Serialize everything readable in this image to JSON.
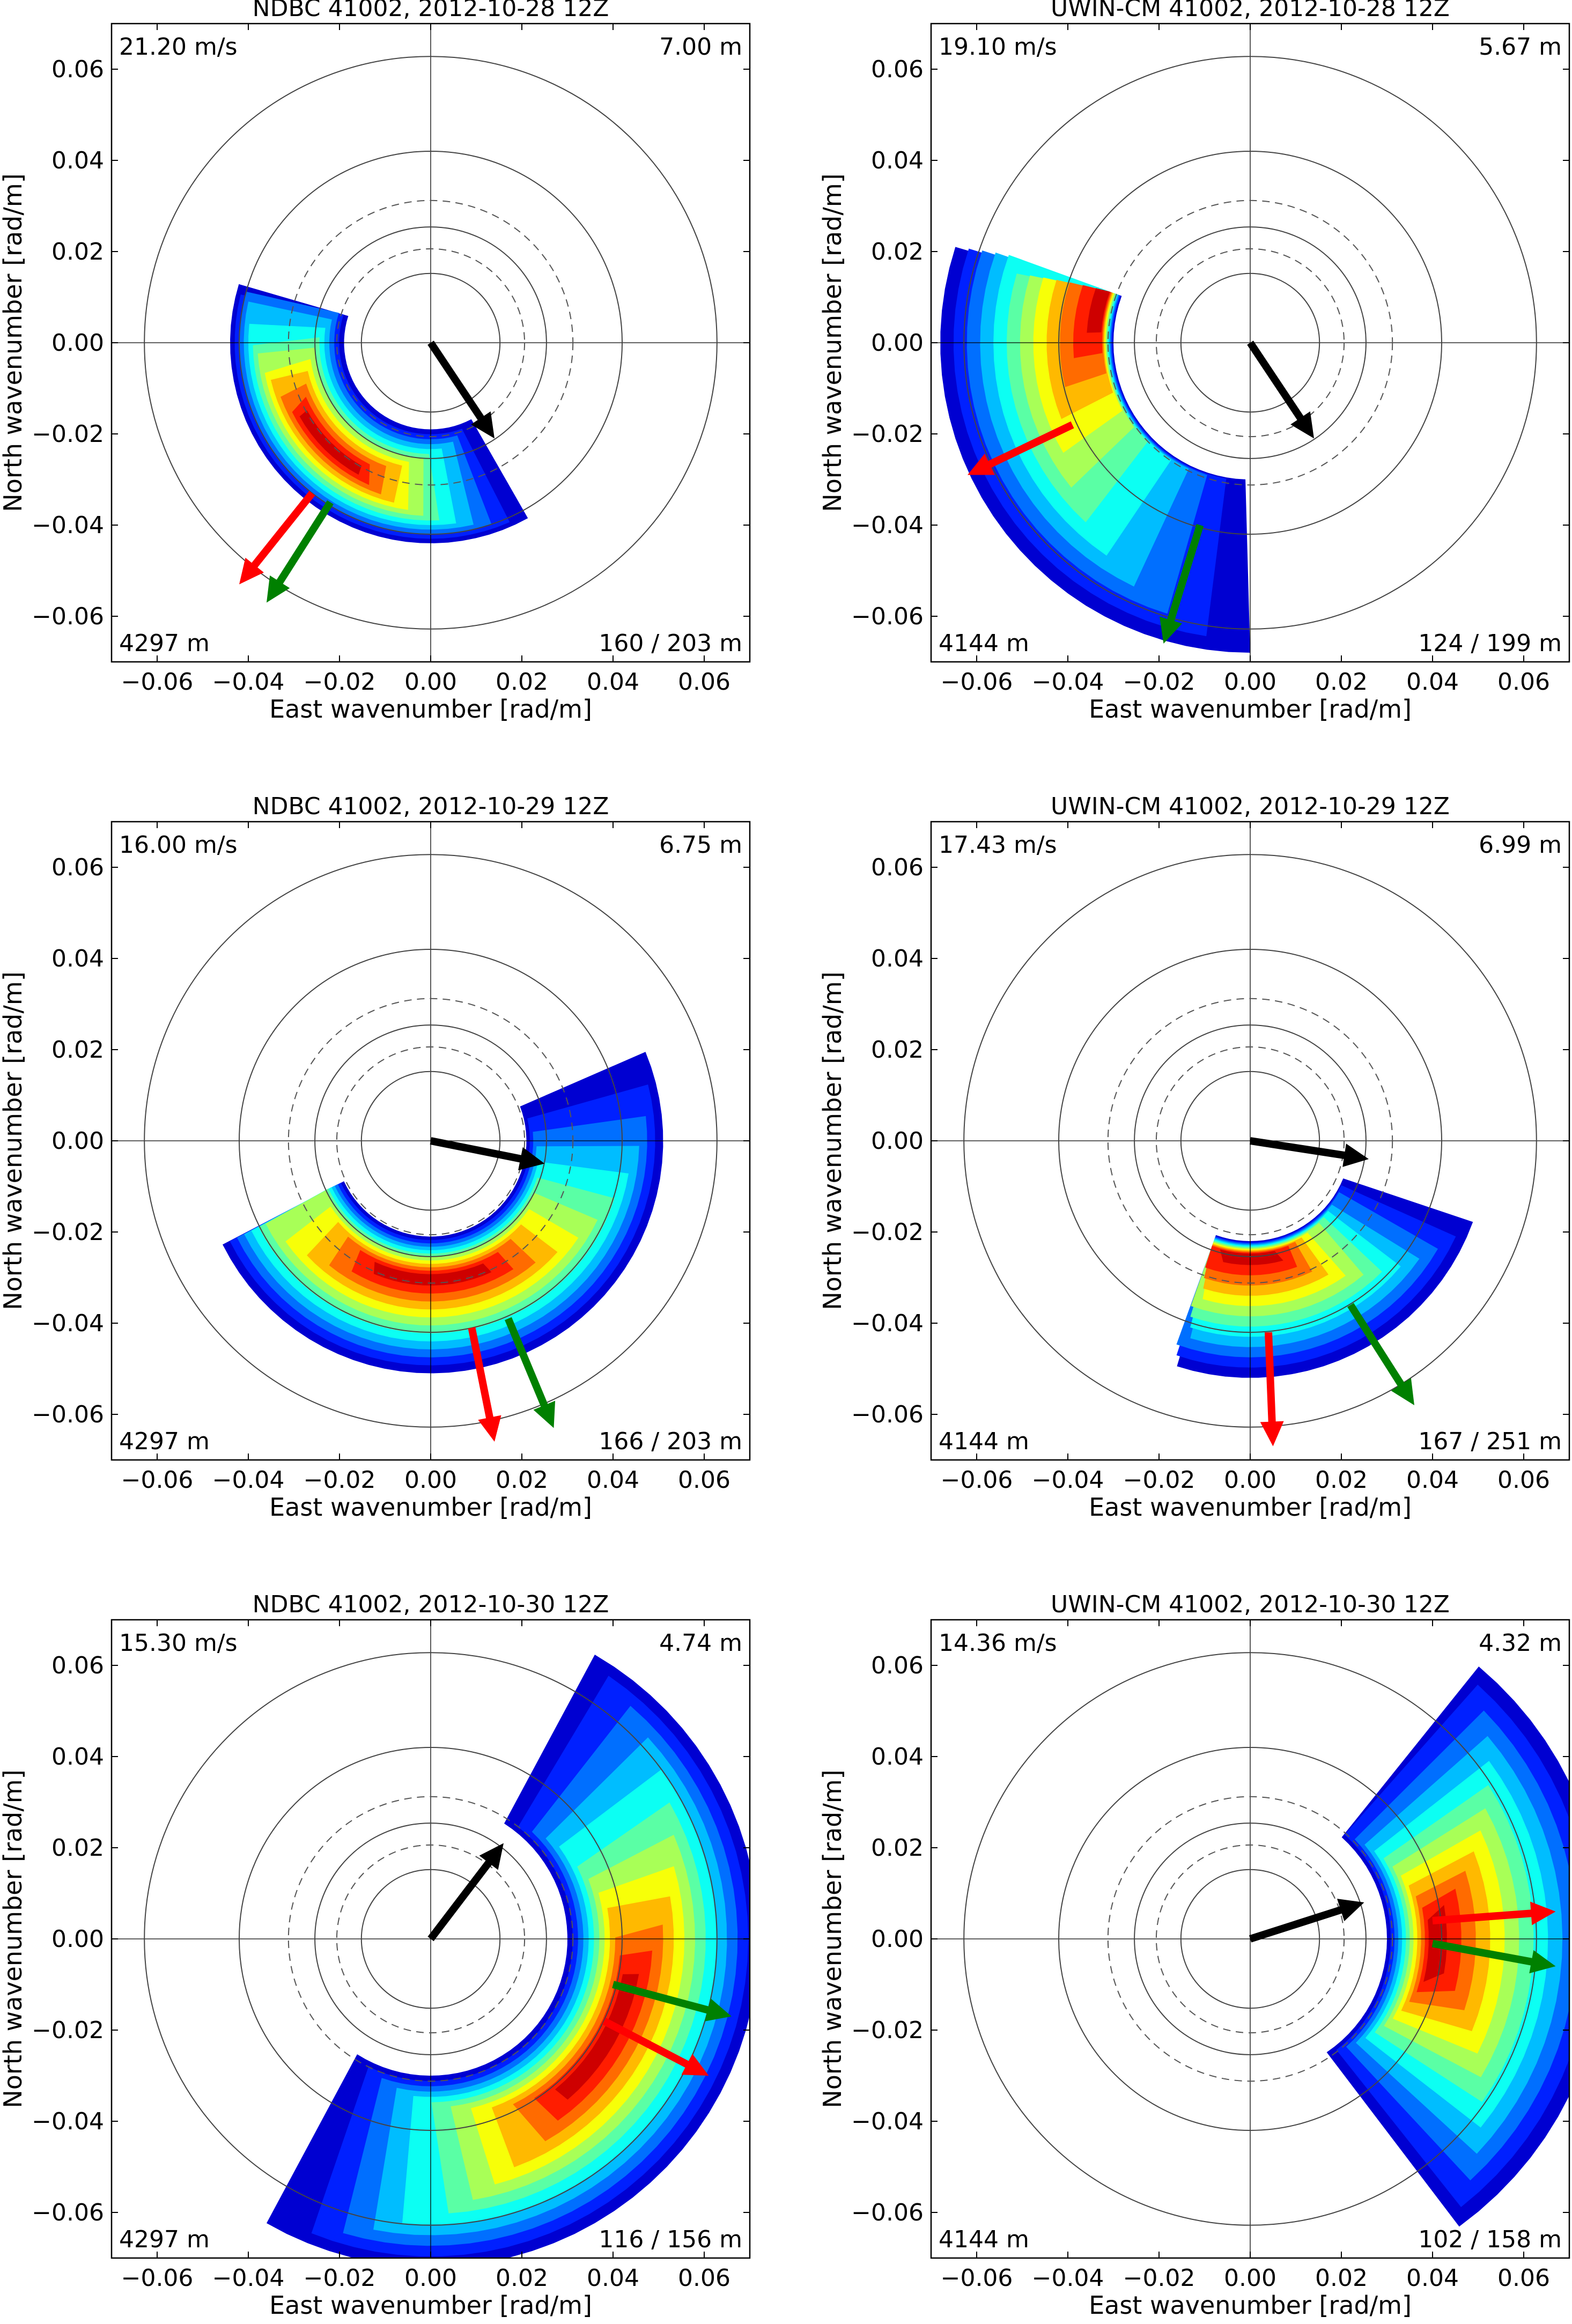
{
  "chart_data": [
    {
      "type": "polar_wave_spectrum",
      "title": "NDBC 41002, 2012-10-28 12Z",
      "xlabel": "East wavenumber [rad/m]",
      "ylabel": "North wavenumber [rad/m]",
      "xlim": [
        -0.07,
        0.07
      ],
      "ylim": [
        -0.07,
        0.07
      ],
      "ticks": [
        -0.06,
        -0.04,
        -0.02,
        0.0,
        0.02,
        0.04,
        0.06
      ],
      "tick_labels": [
        "−0.06",
        "−0.04",
        "−0.02",
        "0.00",
        "0.02",
        "0.04",
        "0.06"
      ],
      "y_tick_labels": [
        "−0.06",
        "−0.04",
        "−0.02",
        "0.00",
        "0.02",
        "0.04",
        "0.06"
      ],
      "corner_labels": {
        "top_left": "21.20 m/s",
        "top_right": "7.00 m",
        "bottom_left": "4297 m",
        "bottom_right": "160 / 203 m"
      },
      "rings": [
        {
          "r": 0.0152,
          "style": "solid"
        },
        {
          "r": 0.0206,
          "style": "dashed"
        },
        {
          "r": 0.0254,
          "style": "solid"
        },
        {
          "r": 0.0312,
          "style": "dashed"
        },
        {
          "r": 0.042,
          "style": "solid"
        },
        {
          "r": 0.0628,
          "style": "solid"
        }
      ],
      "spectrum": {
        "k_inner": 0.019,
        "k_outer": 0.044,
        "dir_start_deg": 140,
        "dir_end_deg": 288,
        "peak_k": 0.032,
        "peak_dir_deg": 225
      },
      "arrows": [
        {
          "color": "#000000",
          "x0": 0.0,
          "y0": 0.0,
          "x1": 0.014,
          "y1": -0.021
        },
        {
          "color": "#ff0000",
          "x0": -0.026,
          "y0": -0.033,
          "x1": -0.042,
          "y1": -0.053
        },
        {
          "color": "#008000",
          "x0": -0.022,
          "y0": -0.035,
          "x1": -0.036,
          "y1": -0.057
        }
      ]
    },
    {
      "type": "polar_wave_spectrum",
      "title": "UWIN-CM 41002, 2012-10-28 12Z",
      "xlabel": "East wavenumber [rad/m]",
      "ylabel": "North wavenumber [rad/m]",
      "xlim": [
        -0.07,
        0.07
      ],
      "ylim": [
        -0.07,
        0.07
      ],
      "ticks": [
        -0.06,
        -0.04,
        -0.02,
        0.0,
        0.02,
        0.04,
        0.06
      ],
      "tick_labels": [
        "−0.06",
        "−0.04",
        "−0.02",
        "0.00",
        "0.02",
        "0.04",
        "0.06"
      ],
      "y_tick_labels": [
        "−0.06",
        "−0.04",
        "−0.02",
        "0.00",
        "0.02",
        "0.04",
        "0.06"
      ],
      "corner_labels": {
        "top_left": "19.10 m/s",
        "top_right": "5.67 m",
        "bottom_left": "4144 m",
        "bottom_right": "124 / 199 m"
      },
      "rings": [
        {
          "r": 0.0152,
          "style": "solid"
        },
        {
          "r": 0.0206,
          "style": "dashed"
        },
        {
          "r": 0.0254,
          "style": "solid"
        },
        {
          "r": 0.0312,
          "style": "dashed"
        },
        {
          "r": 0.042,
          "style": "solid"
        },
        {
          "r": 0.0628,
          "style": "solid"
        }
      ],
      "spectrum": {
        "k_inner": 0.03,
        "k_outer": 0.068,
        "dir_start_deg": 50,
        "dir_end_deg": 290,
        "peak_k": 0.033,
        "peak_dir_deg": 300
      },
      "arrows": [
        {
          "color": "#000000",
          "x0": 0.0,
          "y0": 0.0,
          "x1": 0.014,
          "y1": -0.021
        },
        {
          "color": "#ff0000",
          "x0": -0.039,
          "y0": -0.018,
          "x1": -0.062,
          "y1": -0.029
        },
        {
          "color": "#008000",
          "x0": -0.011,
          "y0": -0.04,
          "x1": -0.019,
          "y1": -0.066
        }
      ]
    },
    {
      "type": "polar_wave_spectrum",
      "title": "NDBC 41002, 2012-10-29 12Z",
      "xlabel": "East wavenumber [rad/m]",
      "ylabel": "North wavenumber [rad/m]",
      "xlim": [
        -0.07,
        0.07
      ],
      "ylim": [
        -0.07,
        0.07
      ],
      "ticks": [
        -0.06,
        -0.04,
        -0.02,
        0.0,
        0.02,
        0.04,
        0.06
      ],
      "tick_labels": [
        "−0.06",
        "−0.04",
        "−0.02",
        "0.00",
        "0.02",
        "0.04",
        "0.06"
      ],
      "y_tick_labels": [
        "−0.06",
        "−0.04",
        "−0.02",
        "0.00",
        "0.02",
        "0.04",
        "0.06"
      ],
      "corner_labels": {
        "top_left": "16.00 m/s",
        "top_right": "6.75 m",
        "bottom_left": "4297 m",
        "bottom_right": "166 / 203 m"
      },
      "rings": [
        {
          "r": 0.0152,
          "style": "solid"
        },
        {
          "r": 0.0206,
          "style": "dashed"
        },
        {
          "r": 0.0254,
          "style": "solid"
        },
        {
          "r": 0.0312,
          "style": "dashed"
        },
        {
          "r": 0.042,
          "style": "solid"
        },
        {
          "r": 0.0628,
          "style": "solid"
        }
      ],
      "spectrum": {
        "k_inner": 0.021,
        "k_outer": 0.051,
        "dir_start_deg": 20,
        "dir_end_deg": 245,
        "peak_k": 0.03,
        "peak_dir_deg": 180
      },
      "arrows": [
        {
          "color": "#000000",
          "x0": 0.0,
          "y0": 0.0,
          "x1": 0.025,
          "y1": -0.005
        },
        {
          "color": "#ff0000",
          "x0": 0.009,
          "y0": -0.041,
          "x1": 0.014,
          "y1": -0.066
        },
        {
          "color": "#008000",
          "x0": 0.017,
          "y0": -0.039,
          "x1": 0.027,
          "y1": -0.063
        }
      ]
    },
    {
      "type": "polar_wave_spectrum",
      "title": "UWIN-CM 41002, 2012-10-29 12Z",
      "xlabel": "East wavenumber [rad/m]",
      "ylabel": "North wavenumber [rad/m]",
      "xlim": [
        -0.07,
        0.07
      ],
      "ylim": [
        -0.07,
        0.07
      ],
      "ticks": [
        -0.06,
        -0.04,
        -0.02,
        0.0,
        0.02,
        0.04,
        0.06
      ],
      "tick_labels": [
        "−0.06",
        "−0.04",
        "−0.02",
        "0.00",
        "0.02",
        "0.04",
        "0.06"
      ],
      "y_tick_labels": [
        "−0.06",
        "−0.04",
        "−0.02",
        "0.00",
        "0.02",
        "0.04",
        "0.06"
      ],
      "corner_labels": {
        "top_left": "17.43 m/s",
        "top_right": "6.99 m",
        "bottom_left": "4144 m",
        "bottom_right": "167 / 251 m"
      },
      "rings": [
        {
          "r": 0.0152,
          "style": "solid"
        },
        {
          "r": 0.0206,
          "style": "dashed"
        },
        {
          "r": 0.0254,
          "style": "solid"
        },
        {
          "r": 0.0312,
          "style": "dashed"
        },
        {
          "r": 0.042,
          "style": "solid"
        },
        {
          "r": 0.0628,
          "style": "solid"
        }
      ],
      "spectrum": {
        "k_inner": 0.022,
        "k_outer": 0.052,
        "dir_start_deg": 60,
        "dir_end_deg": 200,
        "peak_k": 0.025,
        "peak_dir_deg": 180
      },
      "arrows": [
        {
          "color": "#000000",
          "x0": 0.0,
          "y0": 0.0,
          "x1": 0.026,
          "y1": -0.004
        },
        {
          "color": "#ff0000",
          "x0": 0.004,
          "y0": -0.042,
          "x1": 0.005,
          "y1": -0.067
        },
        {
          "color": "#008000",
          "x0": 0.022,
          "y0": -0.036,
          "x1": 0.036,
          "y1": -0.058
        }
      ]
    },
    {
      "type": "polar_wave_spectrum",
      "title": "NDBC 41002, 2012-10-30 12Z",
      "xlabel": "East wavenumber [rad/m]",
      "ylabel": "North wavenumber [rad/m]",
      "xlim": [
        -0.07,
        0.07
      ],
      "ylim": [
        -0.07,
        0.07
      ],
      "ticks": [
        -0.06,
        -0.04,
        -0.02,
        0.0,
        0.02,
        0.04,
        0.06
      ],
      "tick_labels": [
        "−0.06",
        "−0.04",
        "−0.02",
        "0.00",
        "0.02",
        "0.04",
        "0.06"
      ],
      "y_tick_labels": [
        "−0.06",
        "−0.04",
        "−0.02",
        "0.00",
        "0.02",
        "0.04",
        "0.06"
      ],
      "corner_labels": {
        "top_left": "15.30 m/s",
        "top_right": "4.74 m",
        "bottom_left": "4297 m",
        "bottom_right": "116 / 156 m"
      },
      "rings": [
        {
          "r": 0.0152,
          "style": "solid"
        },
        {
          "r": 0.0206,
          "style": "dashed"
        },
        {
          "r": 0.0254,
          "style": "solid"
        },
        {
          "r": 0.0312,
          "style": "dashed"
        },
        {
          "r": 0.042,
          "style": "solid"
        },
        {
          "r": 0.0628,
          "style": "solid"
        }
      ],
      "spectrum": {
        "k_inner": 0.03,
        "k_outer": 0.072,
        "dir_start_deg": 30,
        "dir_end_deg": 215,
        "peak_k": 0.044,
        "peak_dir_deg": 120
      },
      "arrows": [
        {
          "color": "#000000",
          "x0": 0.0,
          "y0": 0.0,
          "x1": 0.016,
          "y1": 0.021
        },
        {
          "color": "#ff0000",
          "x0": 0.038,
          "y0": -0.018,
          "x1": 0.061,
          "y1": -0.03
        },
        {
          "color": "#008000",
          "x0": 0.04,
          "y0": -0.01,
          "x1": 0.066,
          "y1": -0.017
        }
      ]
    },
    {
      "type": "polar_wave_spectrum",
      "title": "UWIN-CM 41002, 2012-10-30 12Z",
      "xlabel": "East wavenumber [rad/m]",
      "ylabel": "North wavenumber [rad/m]",
      "xlim": [
        -0.07,
        0.07
      ],
      "ylim": [
        -0.07,
        0.07
      ],
      "ticks": [
        -0.06,
        -0.04,
        -0.02,
        0.0,
        0.02,
        0.04,
        0.06
      ],
      "tick_labels": [
        "−0.06",
        "−0.04",
        "−0.02",
        "0.00",
        "0.02",
        "0.04",
        "0.06"
      ],
      "y_tick_labels": [
        "−0.06",
        "−0.04",
        "−0.02",
        "0.00",
        "0.02",
        "0.04",
        "0.06"
      ],
      "corner_labels": {
        "top_left": "14.36 m/s",
        "top_right": "4.32 m",
        "bottom_left": "4144 m",
        "bottom_right": "102 / 158 m"
      },
      "rings": [
        {
          "r": 0.0152,
          "style": "solid"
        },
        {
          "r": 0.0206,
          "style": "dashed"
        },
        {
          "r": 0.0254,
          "style": "solid"
        },
        {
          "r": 0.0312,
          "style": "dashed"
        },
        {
          "r": 0.042,
          "style": "solid"
        },
        {
          "r": 0.0628,
          "style": "solid"
        }
      ],
      "spectrum": {
        "k_inner": 0.03,
        "k_outer": 0.078,
        "dir_start_deg": 40,
        "dir_end_deg": 148,
        "peak_k": 0.04,
        "peak_dir_deg": 92
      },
      "arrows": [
        {
          "color": "#000000",
          "x0": 0.0,
          "y0": 0.0,
          "x1": 0.025,
          "y1": 0.008
        },
        {
          "color": "#ff0000",
          "x0": 0.04,
          "y0": 0.004,
          "x1": 0.067,
          "y1": 0.006
        },
        {
          "color": "#008000",
          "x0": 0.04,
          "y0": -0.001,
          "x1": 0.067,
          "y1": -0.006
        }
      ]
    }
  ]
}
